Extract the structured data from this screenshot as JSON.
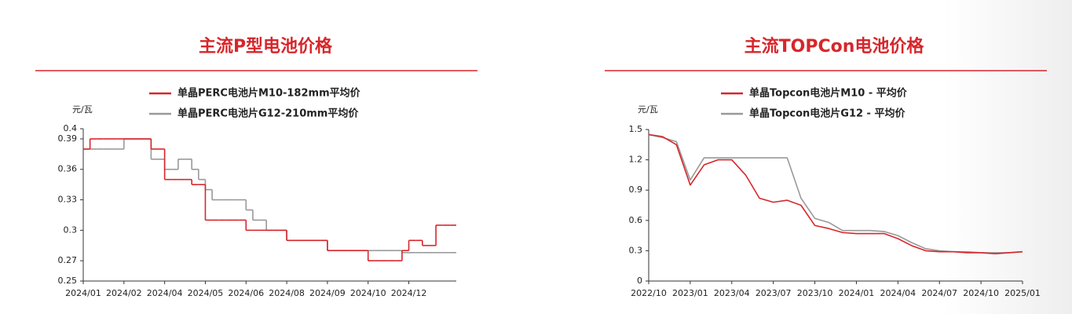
{
  "chart_data": [
    {
      "type": "line",
      "step": true,
      "title": "主流P型电池价格",
      "y_label": "元/瓦",
      "categories": [
        "2024/01",
        null,
        null,
        null,
        null,
        null,
        "2024/02",
        null,
        null,
        null,
        null,
        null,
        "2024/04",
        null,
        null,
        null,
        null,
        null,
        "2024/05",
        null,
        null,
        null,
        null,
        null,
        "2024/06",
        null,
        null,
        null,
        null,
        null,
        "2024/08",
        null,
        null,
        null,
        null,
        null,
        "2024/09",
        null,
        null,
        null,
        null,
        null,
        "2024/10",
        null,
        null,
        null,
        null,
        null,
        "2024/12",
        null,
        null,
        null,
        null,
        null,
        null
      ],
      "ylim": [
        0.25,
        0.4
      ],
      "yticks": [
        0.25,
        0.27,
        0.3,
        0.33,
        0.36,
        0.39,
        0.4
      ],
      "series": [
        {
          "name": "单晶PERC电池片M10-182mm平均价",
          "color": "#d7262b",
          "values": [
            0.38,
            0.39,
            0.39,
            0.39,
            0.39,
            0.39,
            0.39,
            0.39,
            0.39,
            0.39,
            0.38,
            0.38,
            0.35,
            0.35,
            0.35,
            0.35,
            0.345,
            0.345,
            0.31,
            0.31,
            0.31,
            0.31,
            0.31,
            0.31,
            0.3,
            0.3,
            0.3,
            0.3,
            0.3,
            0.3,
            0.29,
            0.29,
            0.29,
            0.29,
            0.29,
            0.29,
            0.28,
            0.28,
            0.28,
            0.28,
            0.28,
            0.28,
            0.27,
            0.27,
            0.27,
            0.27,
            0.27,
            0.28,
            0.29,
            0.29,
            0.285,
            0.285,
            0.305,
            0.305,
            0.305
          ]
        },
        {
          "name": "单晶PERC电池片G12-210mm平均价",
          "color": "#999999",
          "values": [
            0.38,
            0.38,
            0.38,
            0.38,
            0.38,
            0.38,
            0.39,
            0.39,
            0.39,
            0.39,
            0.37,
            0.37,
            0.36,
            0.36,
            0.37,
            0.37,
            0.36,
            0.35,
            0.34,
            0.33,
            0.33,
            0.33,
            0.33,
            0.33,
            0.32,
            0.31,
            0.31,
            0.3,
            0.3,
            0.3,
            0.29,
            0.29,
            0.29,
            0.29,
            0.29,
            0.29,
            0.28,
            0.28,
            0.28,
            0.28,
            0.28,
            0.28,
            0.28,
            0.28,
            0.28,
            0.28,
            0.28,
            0.278,
            0.278,
            0.278,
            0.278,
            0.278,
            0.278,
            0.278,
            0.278
          ]
        }
      ]
    },
    {
      "type": "line",
      "title": "主流TOPCon电池价格",
      "y_label": "元/瓦",
      "categories": [
        "2022/10",
        null,
        null,
        "2023/01",
        null,
        null,
        "2023/04",
        null,
        null,
        "2023/07",
        null,
        null,
        "2023/10",
        null,
        null,
        "2024/01",
        null,
        null,
        "2024/04",
        null,
        null,
        "2024/07",
        null,
        null,
        "2024/10",
        null,
        null,
        "2025/01"
      ],
      "ylim": [
        0,
        1.5
      ],
      "yticks": [
        0,
        0.3,
        0.6,
        0.9,
        1.2,
        1.5
      ],
      "series": [
        {
          "name": "单晶Topcon电池片M10 - 平均价",
          "color": "#d7262b",
          "values": [
            1.45,
            1.43,
            1.35,
            0.95,
            1.15,
            1.2,
            1.2,
            1.05,
            0.82,
            0.78,
            0.8,
            0.75,
            0.55,
            0.52,
            0.48,
            0.47,
            0.47,
            0.47,
            0.42,
            0.35,
            0.3,
            0.29,
            0.29,
            0.28,
            0.28,
            0.27,
            0.28,
            0.29
          ]
        },
        {
          "name": "单晶Topcon电池片G12 - 平均价",
          "color": "#999999",
          "values": [
            1.45,
            1.42,
            1.38,
            1.0,
            1.22,
            1.22,
            1.22,
            1.22,
            1.22,
            1.22,
            1.22,
            0.82,
            0.62,
            0.58,
            0.5,
            0.5,
            0.5,
            0.49,
            0.45,
            0.38,
            0.32,
            0.3,
            0.29,
            0.29,
            0.28,
            0.28,
            0.28,
            0.29
          ]
        }
      ]
    }
  ]
}
